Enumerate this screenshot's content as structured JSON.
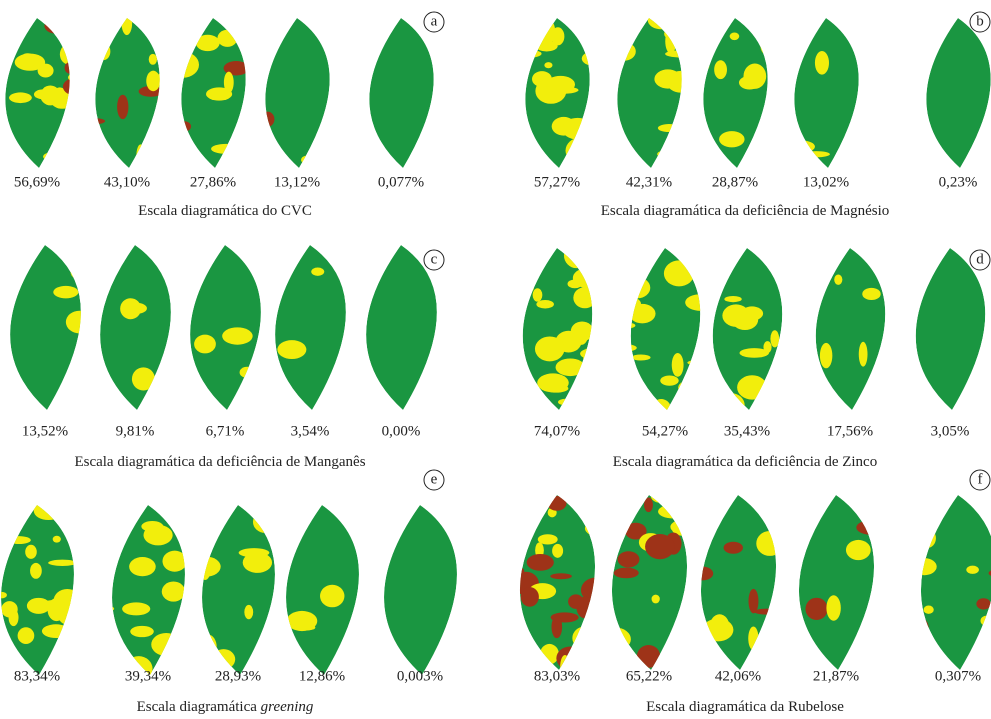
{
  "panels": [
    {
      "letter": "a",
      "labels": [
        "56,69%",
        "43,10%",
        "27,86%",
        "13,12%",
        "0,077%"
      ],
      "caption": "Escala diagramática do CVC"
    },
    {
      "letter": "b",
      "labels": [
        "57,27%",
        "42,31%",
        "28,87%",
        "13,02%",
        "0,23%"
      ],
      "caption": "Escala diagramática da deficiência de Magnésio"
    },
    {
      "letter": "c",
      "labels": [
        "13,52%",
        "9,81%",
        "6,71%",
        "3,54%",
        "0,00%"
      ],
      "caption": "Escala diagramática da deficiência de Manganês"
    },
    {
      "letter": "d",
      "labels": [
        "74,07%",
        "54,27%",
        "35,43%",
        "17,56%",
        "3,05%"
      ],
      "caption": "Escala diagramática da deficiência de Zinco"
    },
    {
      "letter": "e",
      "labels": [
        "83,34%",
        "39,34%",
        "28,93%",
        "12,86%",
        "0,003%"
      ],
      "caption": "Escala diagramática",
      "caption_emphasis": "greening"
    },
    {
      "letter": "f",
      "labels": [
        "83,03%",
        "65,22%",
        "42,06%",
        "21,87%",
        "0,307%"
      ],
      "caption": "Escala diagramática da Rubelose"
    }
  ]
}
